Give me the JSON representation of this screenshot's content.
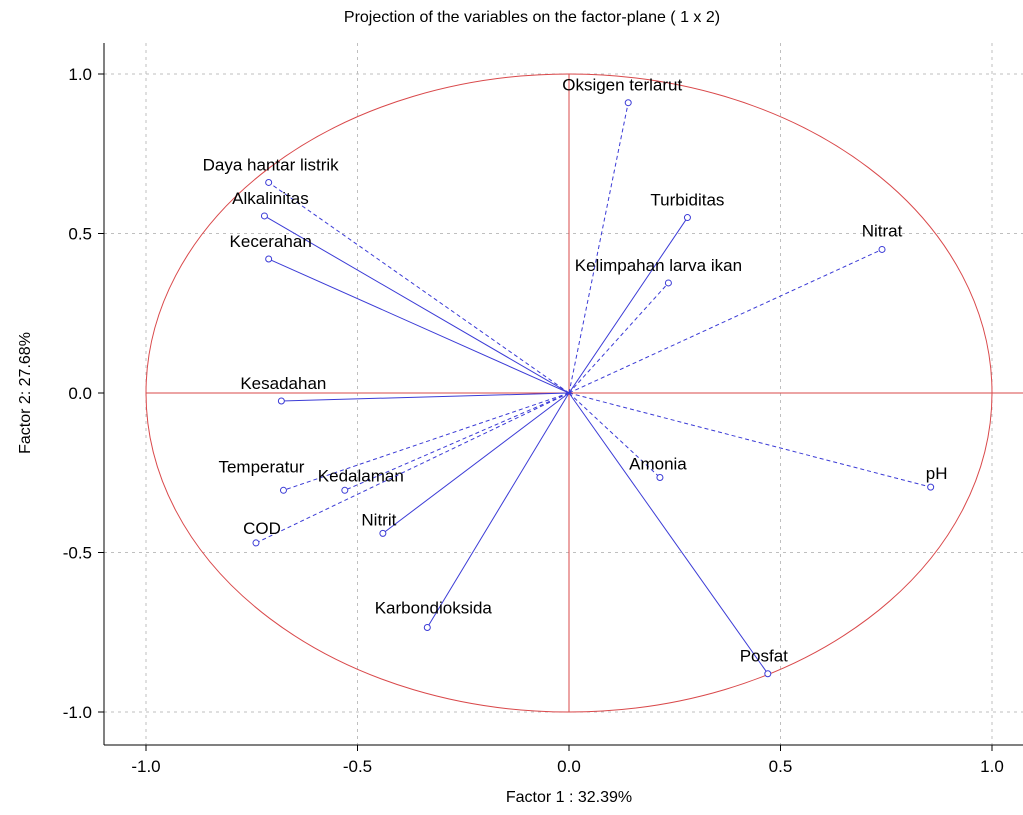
{
  "chart_data": {
    "type": "scatter",
    "title": "Projection of the variables on the factor-plane ( 1 x   2)",
    "xlabel": "Factor 1 : 32.39%",
    "ylabel": "Factor 2: 27.68%",
    "xlim": [
      -1.1,
      1.1
    ],
    "ylim": [
      -1.1,
      1.1
    ],
    "x_ticks": [
      -1.0,
      -0.5,
      0.0,
      0.5,
      1.0
    ],
    "y_ticks": [
      1.0,
      0.5,
      0.0,
      -0.5,
      -1.0
    ],
    "x_tick_labels": [
      "-1.0",
      "-0.5",
      "0.0",
      "0.5",
      "1.0"
    ],
    "y_tick_labels": [
      "1.0",
      "0.5",
      "0.0",
      "-0.5",
      "-1.0"
    ],
    "grid": true,
    "unit_circle": true,
    "colors": {
      "vectors": "#3b3bd6",
      "circle": "#d9484a",
      "axes": "#d9484a",
      "grid": "#bfbfbf"
    },
    "points": [
      {
        "label": "Oksigen terlarut",
        "x": 0.14,
        "y": 0.91,
        "line": "dashed"
      },
      {
        "label": "Daya hantar listrik",
        "x": -0.71,
        "y": 0.66,
        "line": "dashed"
      },
      {
        "label": "Alkalinitas",
        "x": -0.72,
        "y": 0.555,
        "line": "solid"
      },
      {
        "label": "Kecerahan",
        "x": -0.71,
        "y": 0.42,
        "line": "solid"
      },
      {
        "label": "Turbiditas",
        "x": 0.28,
        "y": 0.55,
        "line": "solid"
      },
      {
        "label": "Nitrat",
        "x": 0.74,
        "y": 0.45,
        "line": "dashed"
      },
      {
        "label": "Kelimpahan larva ikan",
        "x": 0.235,
        "y": 0.345,
        "line": "dashed"
      },
      {
        "label": "Kesadahan",
        "x": -0.68,
        "y": -0.025,
        "line": "solid"
      },
      {
        "label": "Temperatur",
        "x": -0.675,
        "y": -0.305,
        "line": "dashed"
      },
      {
        "label": "Kedalaman",
        "x": -0.53,
        "y": -0.305,
        "line": "dashed"
      },
      {
        "label": "COD",
        "x": -0.74,
        "y": -0.47,
        "line": "dashed"
      },
      {
        "label": "Nitrit",
        "x": -0.44,
        "y": -0.44,
        "line": "solid"
      },
      {
        "label": "Amonia",
        "x": 0.215,
        "y": -0.265,
        "line": "dashed"
      },
      {
        "label": "pH",
        "x": 0.855,
        "y": -0.295,
        "line": "dashed"
      },
      {
        "label": "Karbondioksida",
        "x": -0.335,
        "y": -0.735,
        "line": "solid"
      },
      {
        "label": "Posfat",
        "x": 0.47,
        "y": -0.88,
        "line": "solid"
      }
    ]
  }
}
